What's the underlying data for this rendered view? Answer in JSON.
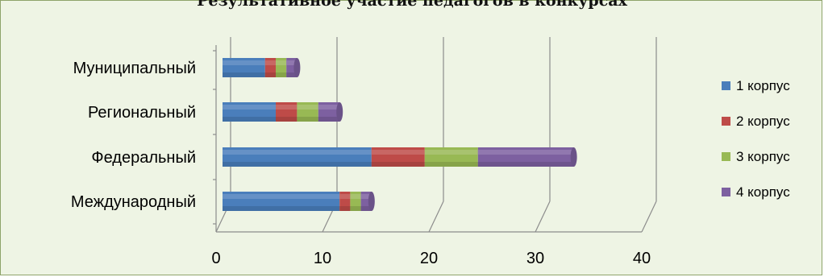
{
  "chart_data": {
    "type": "bar",
    "orientation": "horizontal",
    "stacked": true,
    "title": "Результативное участие педагогов в конкурсах",
    "categories": [
      "Международный",
      "Федеральный",
      "Региональный",
      "Муниципальный"
    ],
    "series": [
      {
        "name": "1 корпус",
        "color": "#4a7ebb",
        "values": [
          11,
          14,
          5,
          4
        ]
      },
      {
        "name": "2 корпус",
        "color": "#be4b48",
        "values": [
          1,
          5,
          2,
          1
        ]
      },
      {
        "name": "3 корпус",
        "color": "#98b954",
        "values": [
          1,
          5,
          2,
          1
        ]
      },
      {
        "name": "4 корпус",
        "color": "#7d60a0",
        "values": [
          1,
          9,
          2,
          1
        ]
      }
    ],
    "xlim": [
      0,
      40
    ],
    "xticks": [
      0,
      10,
      20,
      30,
      40
    ],
    "grid": true,
    "legend": "right",
    "background": "#eef4e4"
  }
}
